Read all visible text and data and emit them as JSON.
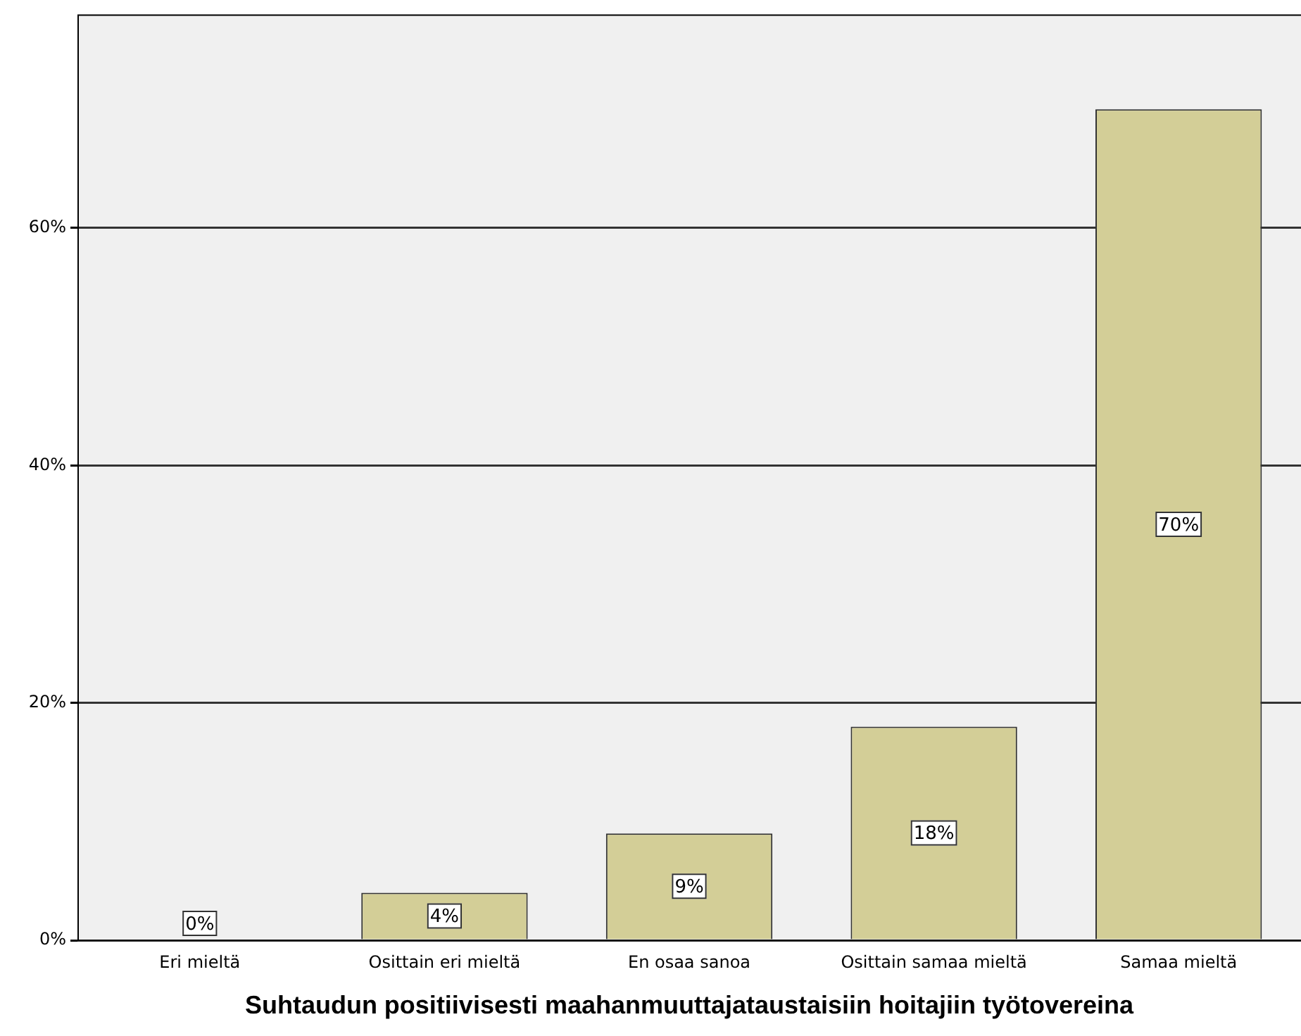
{
  "chart_data": {
    "type": "bar",
    "xlabel": "Suhtaudun positiivisesti maahanmuuttajataustaisiin hoitajiin työtovereina",
    "categories": [
      "Eri mieltä",
      "Osittain eri mieltä",
      "En osaa sanoa",
      "Osittain samaa mieltä",
      "Samaa mieltä"
    ],
    "values": [
      0,
      4,
      9,
      18,
      70
    ],
    "color": "#d3ce97",
    "value_labels": [
      "0%",
      "4%",
      "9%",
      "18%",
      "70%"
    ],
    "ylim": [
      0,
      78
    ],
    "yticks": [
      {
        "value": 0,
        "label": "0%"
      },
      {
        "value": 20,
        "label": "20%"
      },
      {
        "value": 40,
        "label": "40%"
      },
      {
        "value": 60,
        "label": "60%"
      }
    ],
    "grid": "y",
    "legend": false
  }
}
